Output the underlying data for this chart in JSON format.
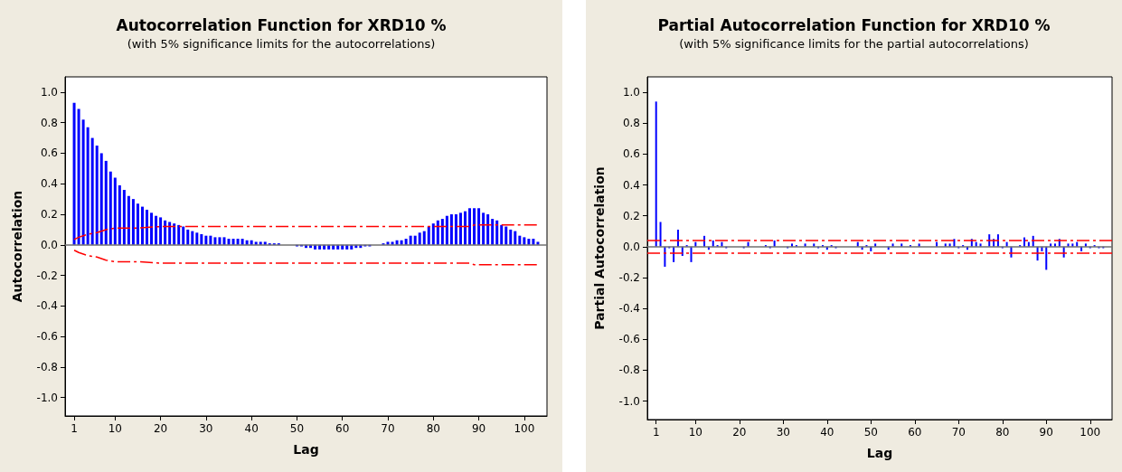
{
  "chart_data": [
    {
      "type": "bar",
      "title": "Autocorrelation Function for XRD10 %",
      "subtitle": "(with 5% significance limits for the autocorrelations)",
      "xlabel": "Lag",
      "ylabel": "Autocorrelation",
      "xlim": [
        -1,
        105
      ],
      "xticks": [
        1,
        10,
        20,
        30,
        40,
        50,
        60,
        70,
        80,
        90,
        100
      ],
      "ylim": [
        -1.12,
        1.1
      ],
      "yticks": [
        {
          "value": 1,
          "label": "1.0"
        },
        0.8,
        0.6,
        0.4,
        0.2,
        {
          "value": 0,
          "label": "0.0"
        },
        -0.2,
        -0.4,
        -0.6,
        -0.8,
        {
          "value": -1,
          "label": "-1.0"
        }
      ],
      "series": [
        {
          "color": "#0000ff",
          "x": [
            1,
            2,
            3,
            4,
            5,
            6,
            7,
            8,
            9,
            10,
            11,
            12,
            13,
            14,
            15,
            16,
            17,
            18,
            19,
            20,
            21,
            22,
            23,
            24,
            25,
            26,
            27,
            28,
            29,
            30,
            31,
            32,
            33,
            34,
            35,
            36,
            37,
            38,
            39,
            40,
            41,
            42,
            43,
            44,
            45,
            46,
            47,
            48,
            49,
            50,
            51,
            52,
            53,
            54,
            55,
            56,
            57,
            58,
            59,
            60,
            61,
            62,
            63,
            64,
            65,
            66,
            67,
            68,
            69,
            70,
            71,
            72,
            73,
            74,
            75,
            76,
            77,
            78,
            79,
            80,
            81,
            82,
            83,
            84,
            85,
            86,
            87,
            88,
            89,
            90,
            91,
            92,
            93,
            94,
            95,
            96,
            97,
            98,
            99,
            100,
            101,
            102,
            103
          ],
          "values": [
            0.93,
            0.89,
            0.82,
            0.77,
            0.7,
            0.65,
            0.6,
            0.55,
            0.48,
            0.44,
            0.39,
            0.36,
            0.32,
            0.3,
            0.27,
            0.25,
            0.23,
            0.21,
            0.19,
            0.18,
            0.16,
            0.15,
            0.14,
            0.13,
            0.12,
            0.1,
            0.09,
            0.08,
            0.07,
            0.06,
            0.06,
            0.05,
            0.05,
            0.05,
            0.04,
            0.04,
            0.04,
            0.04,
            0.03,
            0.03,
            0.02,
            0.02,
            0.02,
            0.01,
            0.01,
            0.01,
            0.0,
            0.0,
            0.0,
            -0.01,
            -0.01,
            -0.02,
            -0.02,
            -0.03,
            -0.03,
            -0.03,
            -0.03,
            -0.03,
            -0.03,
            -0.03,
            -0.03,
            -0.03,
            -0.02,
            -0.02,
            -0.01,
            -0.01,
            0.0,
            0.0,
            0.01,
            0.02,
            0.02,
            0.03,
            0.03,
            0.04,
            0.06,
            0.06,
            0.08,
            0.09,
            0.12,
            0.14,
            0.16,
            0.17,
            0.19,
            0.2,
            0.2,
            0.21,
            0.22,
            0.24,
            0.24,
            0.24,
            0.21,
            0.2,
            0.17,
            0.16,
            0.13,
            0.12,
            0.1,
            0.09,
            0.06,
            0.05,
            0.04,
            0.04,
            0.02
          ]
        },
        {
          "type": "line",
          "color": "#ff0000",
          "line_style": "dashed",
          "x": [
            1,
            2,
            4,
            6,
            8,
            10,
            15,
            20,
            88,
            89,
            103
          ],
          "values": [
            0.035,
            0.05,
            0.07,
            0.08,
            0.1,
            0.11,
            0.11,
            0.12,
            0.12,
            0.13,
            0.13
          ]
        },
        {
          "type": "line",
          "color": "#ff0000",
          "line_style": "dashed",
          "x": [
            1,
            2,
            4,
            6,
            8,
            10,
            15,
            20,
            88,
            89,
            103
          ],
          "values": [
            -0.035,
            -0.05,
            -0.07,
            -0.08,
            -0.1,
            -0.11,
            -0.11,
            -0.12,
            -0.12,
            -0.13,
            -0.13
          ]
        }
      ],
      "ref_lines": [
        {
          "axis": "y",
          "value": 0,
          "color": "#707070",
          "line_style": "solid"
        }
      ]
    },
    {
      "type": "bar",
      "title": "Partial Autocorrelation Function for XRD10 %",
      "subtitle": "(with 5% significance limits for the partial autocorrelations)",
      "xlabel": "Lag",
      "ylabel": "Partial Autocorrelation",
      "xlim": [
        -1,
        105
      ],
      "xticks": [
        1,
        10,
        20,
        30,
        40,
        50,
        60,
        70,
        80,
        90,
        100
      ],
      "ylim": [
        -1.12,
        1.1
      ],
      "yticks": [
        {
          "value": 1,
          "label": "1.0"
        },
        0.8,
        0.6,
        0.4,
        0.2,
        {
          "value": 0,
          "label": "0.0"
        },
        -0.2,
        -0.4,
        -0.6,
        -0.8,
        {
          "value": -1,
          "label": "-1.0"
        }
      ],
      "series": [
        {
          "color": "#0000ff",
          "x": [
            1,
            2,
            3,
            4,
            5,
            6,
            7,
            8,
            9,
            10,
            11,
            12,
            13,
            14,
            15,
            16,
            17,
            18,
            19,
            20,
            21,
            22,
            23,
            24,
            25,
            26,
            27,
            28,
            29,
            30,
            31,
            32,
            33,
            34,
            35,
            36,
            37,
            38,
            39,
            40,
            41,
            42,
            43,
            44,
            45,
            46,
            47,
            48,
            49,
            50,
            51,
            52,
            53,
            54,
            55,
            56,
            57,
            58,
            59,
            60,
            61,
            62,
            63,
            64,
            65,
            66,
            67,
            68,
            69,
            70,
            71,
            72,
            73,
            74,
            75,
            76,
            77,
            78,
            79,
            80,
            81,
            82,
            83,
            84,
            85,
            86,
            87,
            88,
            89,
            90,
            91,
            92,
            93,
            94,
            95,
            96,
            97,
            98,
            99,
            100,
            101,
            102,
            103
          ],
          "values": [
            0.94,
            0.16,
            -0.13,
            -0.01,
            -0.1,
            0.11,
            -0.06,
            0.01,
            -0.1,
            0.03,
            0.0,
            0.07,
            -0.02,
            0.04,
            0.01,
            0.03,
            -0.01,
            0.0,
            0.0,
            0.0,
            -0.01,
            0.03,
            0.0,
            0.0,
            0.0,
            0.01,
            -0.01,
            0.04,
            0.0,
            0.0,
            -0.01,
            0.02,
            0.01,
            0.0,
            0.02,
            0.0,
            0.02,
            -0.01,
            0.01,
            -0.02,
            0.01,
            -0.01,
            0.0,
            0.0,
            0.0,
            0.0,
            0.03,
            -0.02,
            0.01,
            -0.03,
            0.02,
            0.0,
            0.0,
            -0.02,
            0.02,
            0.0,
            0.02,
            0.0,
            0.01,
            0.0,
            0.02,
            0.0,
            0.0,
            0.0,
            0.03,
            0.0,
            0.02,
            0.02,
            0.05,
            -0.01,
            0.01,
            -0.02,
            0.05,
            0.03,
            0.02,
            0.0,
            0.08,
            0.05,
            0.08,
            -0.01,
            0.03,
            -0.07,
            0.0,
            0.01,
            0.06,
            0.03,
            0.07,
            -0.09,
            -0.03,
            -0.15,
            0.02,
            0.02,
            0.05,
            -0.07,
            0.02,
            0.02,
            0.03,
            -0.03,
            0.02,
            -0.01,
            0.01,
            -0.01,
            -0.01
          ]
        }
      ],
      "ref_lines": [
        {
          "axis": "y",
          "value": 0,
          "color": "#707070",
          "line_style": "solid"
        },
        {
          "axis": "y",
          "value": 0.036,
          "color": "#ff0000",
          "line_style": "dashed"
        },
        {
          "axis": "y",
          "value": -0.036,
          "color": "#ff0000",
          "line_style": "dashed"
        }
      ]
    }
  ]
}
